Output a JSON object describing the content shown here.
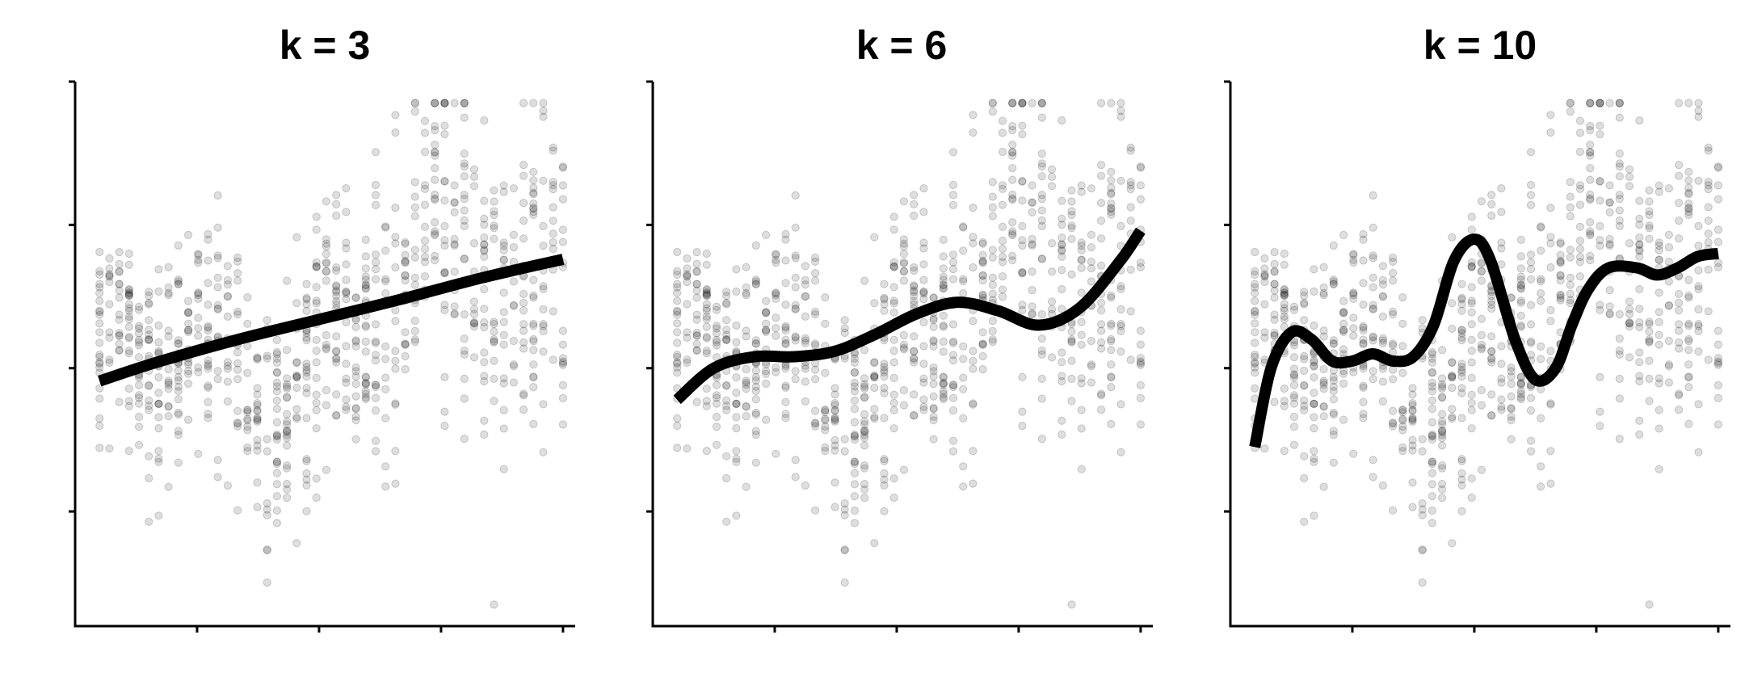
{
  "colors": {
    "points": "#000000",
    "smooth": "#000000",
    "axis": "#000000",
    "background": "#ffffff"
  },
  "chart_data": [
    {
      "type": "scatter",
      "title": "k = 3",
      "xlabel": "",
      "ylabel": "",
      "xlim": [
        0,
        12.3
      ],
      "ylim": [
        0,
        3.8
      ],
      "x_ticks": [
        3,
        6,
        9,
        12
      ],
      "y_ticks": [
        0.8,
        1.8,
        2.8,
        3.8
      ],
      "grid": false,
      "legend": "none",
      "series": [
        {
          "role": "smooth",
          "x": [
            0.6,
            2,
            4,
            6,
            8,
            10,
            12
          ],
          "y": [
            1.71,
            1.84,
            2.0,
            2.14,
            2.28,
            2.43,
            2.56
          ]
        }
      ]
    },
    {
      "type": "scatter",
      "title": "k = 6",
      "xlabel": "",
      "ylabel": "",
      "xlim": [
        0,
        12.3
      ],
      "ylim": [
        0,
        3.8
      ],
      "x_ticks": [
        3,
        6,
        9,
        12
      ],
      "y_ticks": [
        0.8,
        1.8,
        2.8,
        3.8
      ],
      "grid": false,
      "legend": "none",
      "series": [
        {
          "role": "smooth",
          "x": [
            0.6,
            1.5,
            2.5,
            3.5,
            4.5,
            5.5,
            6.5,
            7.5,
            8.5,
            9.5,
            10.5,
            11.5,
            12.0
          ],
          "y": [
            1.58,
            1.8,
            1.88,
            1.88,
            1.92,
            2.04,
            2.18,
            2.26,
            2.2,
            2.1,
            2.22,
            2.55,
            2.76
          ]
        }
      ]
    },
    {
      "type": "scatter",
      "title": "k = 10",
      "xlabel": "",
      "ylabel": "",
      "xlim": [
        0,
        12.3
      ],
      "ylim": [
        0,
        3.8
      ],
      "x_ticks": [
        3,
        6,
        9,
        12
      ],
      "y_ticks": [
        0.8,
        1.8,
        2.8,
        3.8
      ],
      "grid": false,
      "legend": "none",
      "series": [
        {
          "role": "smooth",
          "x": [
            0.6,
            1.0,
            1.5,
            2.0,
            2.5,
            3.0,
            3.5,
            4.0,
            4.5,
            5.0,
            5.5,
            6.0,
            6.4,
            7.0,
            7.5,
            8.0,
            8.4,
            8.8,
            9.3,
            10.0,
            10.5,
            11.0,
            11.5,
            12.0
          ],
          "y": [
            1.25,
            1.8,
            2.05,
            2.0,
            1.85,
            1.85,
            1.9,
            1.85,
            1.88,
            2.1,
            2.55,
            2.7,
            2.55,
            2.0,
            1.72,
            1.8,
            2.1,
            2.35,
            2.5,
            2.5,
            2.45,
            2.5,
            2.58,
            2.6
          ]
        }
      ]
    }
  ]
}
